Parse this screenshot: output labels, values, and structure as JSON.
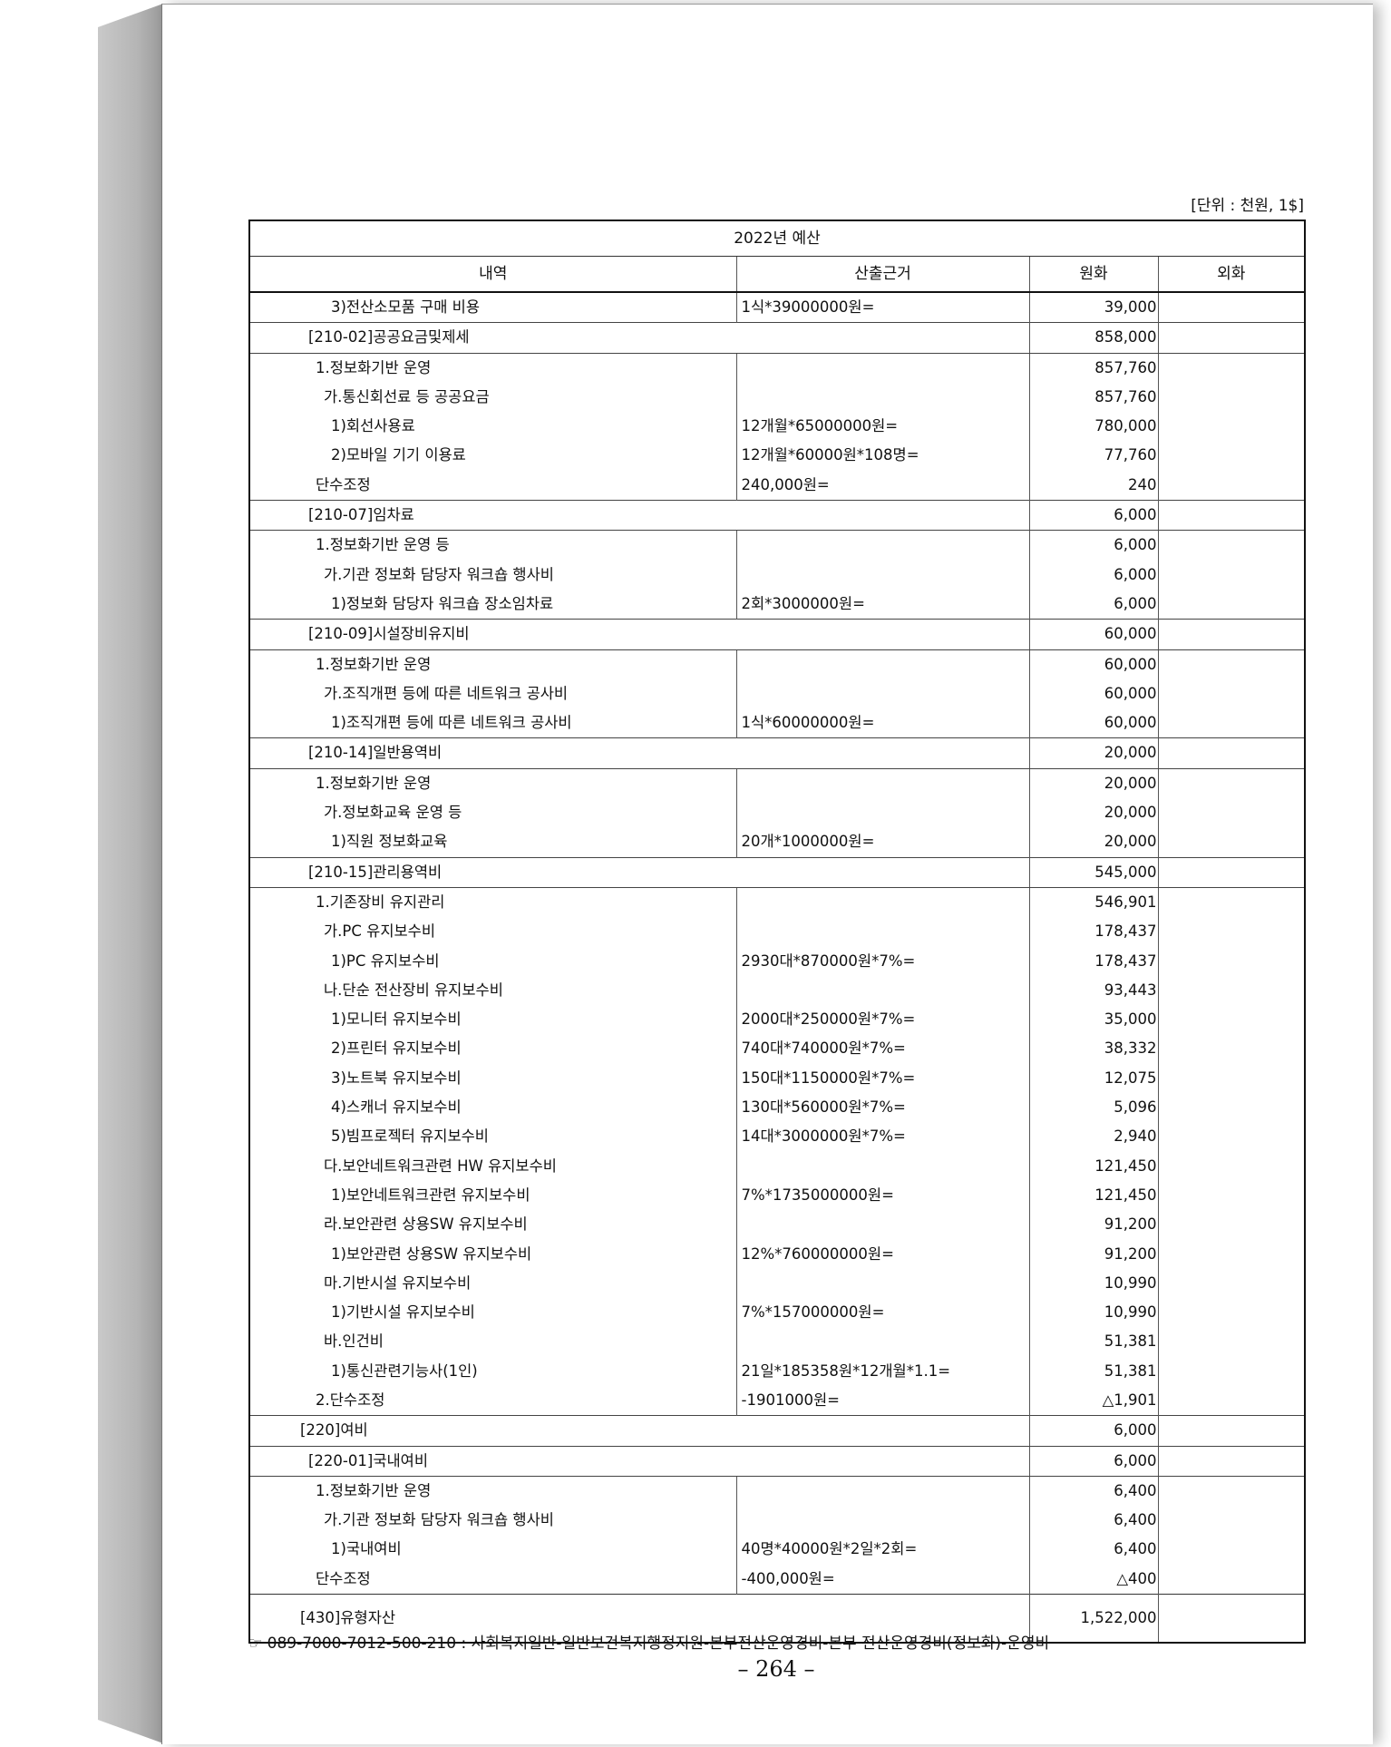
{
  "unit_label": "[단위 : 천원, 1$]",
  "table": {
    "title": "2022년 예산",
    "headers": [
      "내역",
      "산출근거",
      "원화",
      "외화"
    ],
    "rows": [
      {
        "level": 4,
        "label": "3)전산소모품 구매 비용",
        "calc": "1식*39000000원=",
        "krw": "39,000"
      },
      {
        "level": 1,
        "section": true,
        "label": "[210-02]공공요금및제세",
        "krw": "858,000"
      },
      {
        "level": 2,
        "label": "1.정보화기반 운영",
        "calc": "",
        "krw": "857,760"
      },
      {
        "level": 3,
        "label": "가.통신회선료 등 공공요금",
        "calc": "",
        "krw": "857,760"
      },
      {
        "level": 4,
        "label": "1)회선사용료",
        "calc": "12개월*65000000원=",
        "krw": "780,000"
      },
      {
        "level": 4,
        "label": "2)모바일 기기 이용료",
        "calc": "12개월*60000원*108명=",
        "krw": "77,760"
      },
      {
        "level": 2,
        "label": "단수조정",
        "calc": "240,000원=",
        "krw": "240"
      },
      {
        "level": 1,
        "section": true,
        "label": "[210-07]임차료",
        "krw": "6,000"
      },
      {
        "level": 2,
        "label": "1.정보화기반 운영 등",
        "calc": "",
        "krw": "6,000"
      },
      {
        "level": 3,
        "label": "가.기관 정보화 담당자 워크숍 행사비",
        "calc": "",
        "krw": "6,000"
      },
      {
        "level": 4,
        "label": "1)정보화 담당자 워크숍 장소임차료",
        "calc": "2회*3000000원=",
        "krw": "6,000"
      },
      {
        "level": 1,
        "section": true,
        "label": "[210-09]시설장비유지비",
        "krw": "60,000"
      },
      {
        "level": 2,
        "label": "1.정보화기반 운영",
        "calc": "",
        "krw": "60,000"
      },
      {
        "level": 3,
        "label": "가.조직개편 등에 따른 네트워크 공사비",
        "calc": "",
        "krw": "60,000"
      },
      {
        "level": 4,
        "label": "1)조직개편 등에 따른 네트워크 공사비",
        "calc": "1식*60000000원=",
        "krw": "60,000"
      },
      {
        "level": 1,
        "section": true,
        "label": "[210-14]일반용역비",
        "krw": "20,000"
      },
      {
        "level": 2,
        "label": "1.정보화기반 운영",
        "calc": "",
        "krw": "20,000"
      },
      {
        "level": 3,
        "label": "가.정보화교육 운영 등",
        "calc": "",
        "krw": "20,000"
      },
      {
        "level": 4,
        "label": "1)직원 정보화교육",
        "calc": "20개*1000000원=",
        "krw": "20,000"
      },
      {
        "level": 1,
        "section": true,
        "label": "[210-15]관리용역비",
        "krw": "545,000"
      },
      {
        "level": 2,
        "label": "1.기존장비 유지관리",
        "calc": "",
        "krw": "546,901"
      },
      {
        "level": 3,
        "label": "가.PC 유지보수비",
        "calc": "",
        "krw": "178,437"
      },
      {
        "level": 4,
        "label": "1)PC 유지보수비",
        "calc": "2930대*870000원*7%=",
        "krw": "178,437"
      },
      {
        "level": 3,
        "label": "나.단순 전산장비 유지보수비",
        "calc": "",
        "krw": "93,443"
      },
      {
        "level": 4,
        "label": "1)모니터 유지보수비",
        "calc": "2000대*250000원*7%=",
        "krw": "35,000"
      },
      {
        "level": 4,
        "label": "2)프린터 유지보수비",
        "calc": "740대*740000원*7%=",
        "krw": "38,332"
      },
      {
        "level": 4,
        "label": "3)노트북 유지보수비",
        "calc": "150대*1150000원*7%=",
        "krw": "12,075"
      },
      {
        "level": 4,
        "label": "4)스캐너 유지보수비",
        "calc": "130대*560000원*7%=",
        "krw": "5,096"
      },
      {
        "level": 4,
        "label": "5)빔프로젝터 유지보수비",
        "calc": "14대*3000000원*7%=",
        "krw": "2,940"
      },
      {
        "level": 3,
        "label": "다.보안네트워크관련 HW 유지보수비",
        "calc": "",
        "krw": "121,450"
      },
      {
        "level": 4,
        "label": "1)보안네트워크관련 유지보수비",
        "calc": "7%*1735000000원=",
        "krw": "121,450"
      },
      {
        "level": 3,
        "label": "라.보안관련 상용SW 유지보수비",
        "calc": "",
        "krw": "91,200"
      },
      {
        "level": 4,
        "label": "1)보안관련 상용SW 유지보수비",
        "calc": "12%*760000000원=",
        "krw": "91,200"
      },
      {
        "level": 3,
        "label": "마.기반시설 유지보수비",
        "calc": "",
        "krw": "10,990"
      },
      {
        "level": 4,
        "label": "1)기반시설 유지보수비",
        "calc": "7%*157000000원=",
        "krw": "10,990"
      },
      {
        "level": 3,
        "label": "바.인건비",
        "calc": "",
        "krw": "51,381"
      },
      {
        "level": 4,
        "label": "1)통신관련기능사(1인)",
        "calc": "21일*185358원*12개월*1.1=",
        "krw": "51,381"
      },
      {
        "level": 2,
        "label": "2.단수조정",
        "calc": "-1901000원=",
        "krw": "△1,901"
      },
      {
        "level": 0,
        "section": true,
        "label": "[220]여비",
        "krw": "6,000"
      },
      {
        "level": 1,
        "section": true,
        "label": "[220-01]국내여비",
        "krw": "6,000"
      },
      {
        "level": 2,
        "label": "1.정보화기반 운영",
        "calc": "",
        "krw": "6,400"
      },
      {
        "level": 3,
        "label": "가.기관 정보화 담당자 워크숍 행사비",
        "calc": "",
        "krw": "6,400"
      },
      {
        "level": 4,
        "label": "1)국내여비",
        "calc": "40명*40000원*2일*2회=",
        "krw": "6,400"
      },
      {
        "level": 2,
        "label": "단수조정",
        "calc": "-400,000원=",
        "krw": "△400"
      },
      {
        "level": 0,
        "section": true,
        "last": true,
        "label": "[430]유형자산",
        "krw": "1,522,000"
      }
    ]
  },
  "footnote": "☞ 089-7000-7012-500-210 : 사회복지일반-일반보건복지행정지원-본부전산운영경비-본부 전산운영경비(정보화)-운영비",
  "page_number": "– 264 –"
}
